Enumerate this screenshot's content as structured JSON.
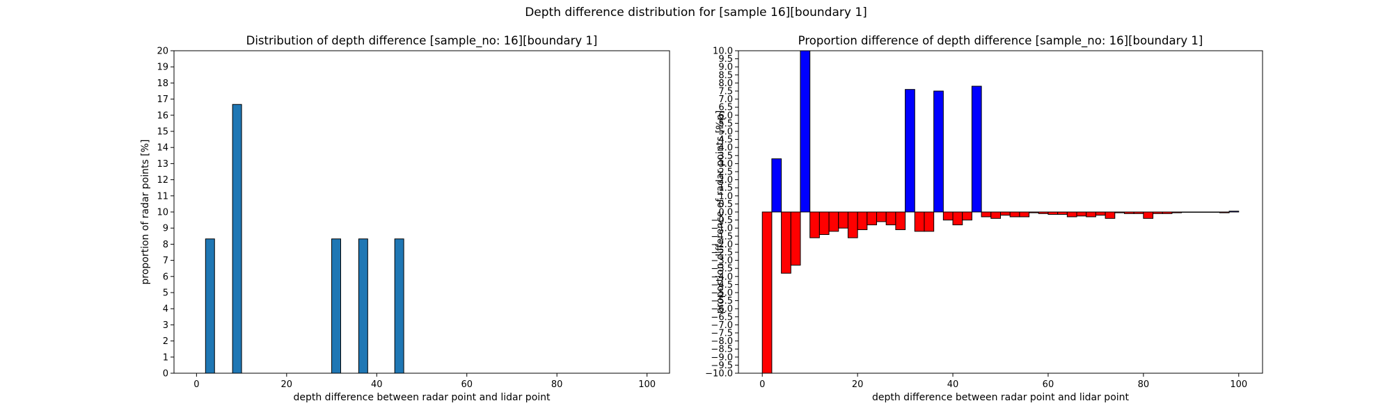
{
  "suptitle": "Depth difference distribution for [sample 16][boundary 1]",
  "chart_data": [
    {
      "type": "bar",
      "title": "Distribution of depth difference [sample_no: 16][boundary 1]",
      "xlabel": "depth difference between radar point and lidar point",
      "ylabel": "proportion of radar points [%]",
      "xlim": [
        -5,
        105
      ],
      "ylim": [
        0,
        20
      ],
      "xticks": [
        0,
        20,
        40,
        60,
        80,
        100
      ],
      "yticks": [
        0,
        1,
        2,
        3,
        4,
        5,
        6,
        7,
        8,
        9,
        10,
        11,
        12,
        13,
        14,
        15,
        16,
        17,
        18,
        19,
        20
      ],
      "bar_width": 2,
      "bar_color": "#1f77b4",
      "x": [
        3,
        9,
        31,
        37,
        45
      ],
      "values": [
        8.33,
        16.67,
        8.33,
        8.33,
        8.33
      ]
    },
    {
      "type": "bar",
      "title": "Proportion difference of depth difference [sample_no: 16][boundary 1]",
      "xlabel": "depth difference between radar point and lidar point",
      "ylabel": "proportion difference of radar points [%p]",
      "xlim": [
        -5,
        105
      ],
      "ylim": [
        -10,
        10
      ],
      "xticks": [
        0,
        20,
        40,
        60,
        80,
        100
      ],
      "ytick_step": 0.5,
      "bar_width": 2,
      "positive_color": "#0000ff",
      "negative_color": "#ff0000",
      "x": [
        1,
        3,
        5,
        7,
        9,
        11,
        13,
        15,
        17,
        19,
        21,
        23,
        25,
        27,
        29,
        31,
        33,
        35,
        37,
        39,
        41,
        43,
        45,
        47,
        49,
        51,
        53,
        55,
        57,
        59,
        61,
        63,
        65,
        67,
        69,
        71,
        73,
        75,
        77,
        79,
        81,
        83,
        85,
        87,
        89,
        91,
        93,
        95,
        97,
        99
      ],
      "values": [
        -10.0,
        3.3,
        -3.8,
        -3.3,
        10.0,
        -1.6,
        -1.4,
        -1.2,
        -1.0,
        -1.6,
        -1.1,
        -0.8,
        -0.6,
        -0.8,
        -1.1,
        7.6,
        -1.2,
        -1.2,
        7.5,
        -0.5,
        -0.8,
        -0.5,
        7.8,
        -0.3,
        -0.4,
        -0.2,
        -0.3,
        -0.3,
        -0.05,
        -0.1,
        -0.15,
        -0.15,
        -0.3,
        -0.25,
        -0.3,
        -0.2,
        -0.4,
        -0.05,
        -0.1,
        -0.1,
        -0.4,
        -0.1,
        -0.1,
        -0.05,
        0.0,
        0.0,
        0.0,
        0.0,
        -0.05,
        0.05
      ]
    }
  ]
}
